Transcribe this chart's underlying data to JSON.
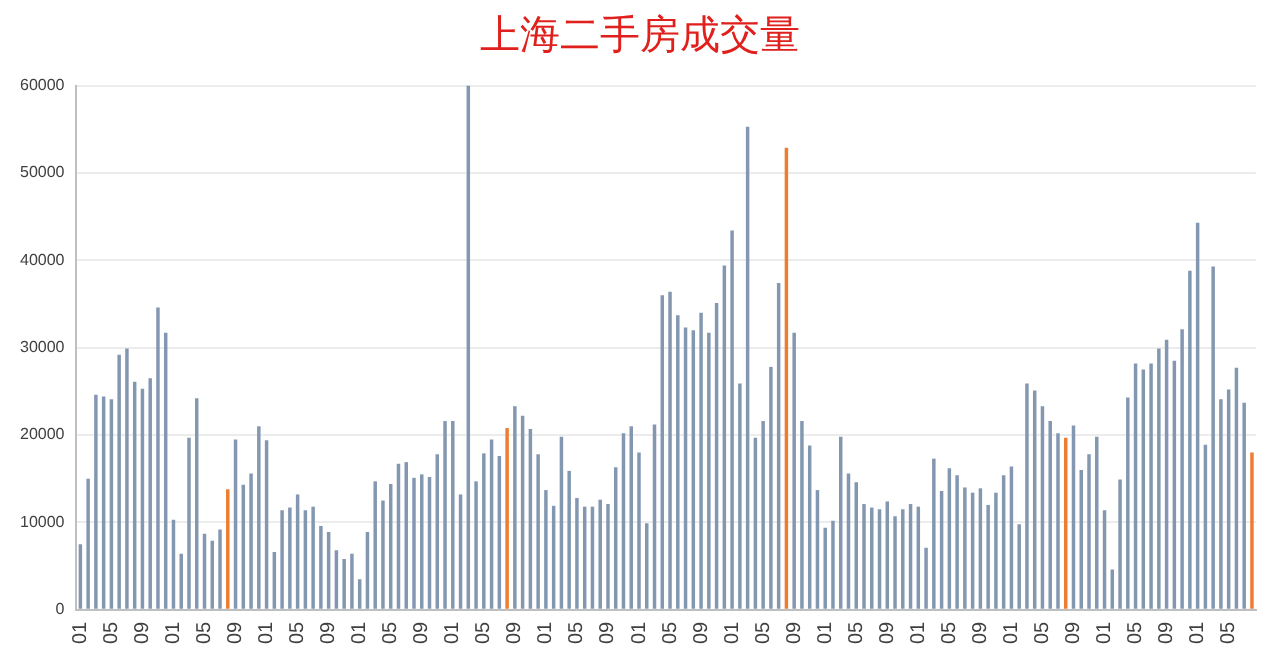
{
  "chart_data": {
    "type": "bar",
    "title": "上海二手房成交量",
    "categories": [
      "01",
      null,
      null,
      null,
      "05",
      null,
      null,
      null,
      "09",
      null,
      null,
      null,
      "01",
      null,
      null,
      null,
      "05",
      null,
      null,
      null,
      "09",
      null,
      null,
      null,
      "01",
      null,
      null,
      null,
      "05",
      null,
      null,
      null,
      "09",
      null,
      null,
      null,
      "01",
      null,
      null,
      null,
      "05",
      null,
      null,
      null,
      "09",
      null,
      null,
      null,
      "01",
      null,
      null,
      null,
      "05",
      null,
      null,
      null,
      "09",
      null,
      null,
      null,
      "01",
      null,
      null,
      null,
      "05",
      null,
      null,
      null,
      "09",
      null,
      null,
      null,
      "01",
      null,
      null,
      null,
      "05",
      null,
      null,
      null,
      "09",
      null,
      null,
      null,
      "01",
      null,
      null,
      null,
      "05",
      null,
      null,
      null,
      "09",
      null,
      null,
      null,
      "01",
      null,
      null,
      null,
      "05",
      null,
      null,
      null,
      "09",
      null,
      null,
      null,
      "01",
      null,
      null,
      null,
      "05",
      null,
      null,
      null,
      "09",
      null,
      null,
      null,
      "01",
      null,
      null,
      null,
      "05",
      null,
      null,
      null,
      "09",
      null,
      null,
      null,
      "01",
      null,
      null,
      null,
      "05",
      null,
      null,
      null,
      "09",
      null,
      null,
      null,
      "01",
      null,
      null,
      null,
      "05",
      null,
      null,
      null
    ],
    "values": [
      7500,
      15000,
      24600,
      24400,
      24100,
      29200,
      29900,
      26100,
      25300,
      26500,
      34600,
      31700,
      10300,
      6400,
      19700,
      24200,
      8700,
      7900,
      9200,
      13800,
      19500,
      14300,
      15600,
      21000,
      19400,
      6600,
      11400,
      11700,
      13200,
      11400,
      11800,
      9600,
      8900,
      6800,
      5800,
      6400,
      3500,
      8900,
      14700,
      12500,
      14400,
      16700,
      16900,
      15100,
      15500,
      15200,
      17800,
      21600,
      21600,
      13200,
      60000,
      14700,
      17900,
      19500,
      17600,
      20800,
      23300,
      22200,
      20700,
      17800,
      13700,
      11900,
      19800,
      15900,
      12800,
      11800,
      11800,
      12600,
      12100,
      16300,
      20200,
      21000,
      18000,
      9900,
      21200,
      36000,
      36400,
      33700,
      32300,
      32000,
      34000,
      31700,
      35100,
      39400,
      43400,
      25900,
      55300,
      19700,
      21600,
      27800,
      37400,
      52900,
      31700,
      21600,
      18800,
      13700,
      9400,
      10200,
      19800,
      15600,
      14600,
      12100,
      11700,
      11500,
      12400,
      10700,
      11500,
      12100,
      11800,
      7100,
      17300,
      13600,
      16200,
      15400,
      14000,
      13400,
      13900,
      12000,
      13400,
      15400,
      16400,
      9800,
      25900,
      25100,
      23300,
      21600,
      20200,
      19700,
      21100,
      16000,
      17800,
      19800,
      11400,
      4600,
      14900,
      24300,
      28200,
      27500,
      28200,
      29900,
      30900,
      28500,
      32100,
      38800,
      44300,
      18900,
      39300,
      24100,
      25200,
      27700,
      23700,
      18000
    ],
    "colors": [
      "#8497b0",
      "#8497b0",
      "#8497b0",
      "#8497b0",
      "#8497b0",
      "#8497b0",
      "#8497b0",
      "#8497b0",
      "#8497b0",
      "#8497b0",
      "#8497b0",
      "#8497b0",
      "#8497b0",
      "#8497b0",
      "#8497b0",
      "#8497b0",
      "#8497b0",
      "#8497b0",
      "#8497b0",
      "#ed7d31",
      "#8497b0",
      "#8497b0",
      "#8497b0",
      "#8497b0",
      "#8497b0",
      "#8497b0",
      "#8497b0",
      "#8497b0",
      "#8497b0",
      "#8497b0",
      "#8497b0",
      "#8497b0",
      "#8497b0",
      "#8497b0",
      "#8497b0",
      "#8497b0",
      "#8497b0",
      "#8497b0",
      "#8497b0",
      "#8497b0",
      "#8497b0",
      "#8497b0",
      "#8497b0",
      "#8497b0",
      "#8497b0",
      "#8497b0",
      "#8497b0",
      "#8497b0",
      "#8497b0",
      "#8497b0",
      "#8497b0",
      "#8497b0",
      "#8497b0",
      "#8497b0",
      "#8497b0",
      "#ed7d31",
      "#8497b0",
      "#8497b0",
      "#8497b0",
      "#8497b0",
      "#8497b0",
      "#8497b0",
      "#8497b0",
      "#8497b0",
      "#8497b0",
      "#8497b0",
      "#8497b0",
      "#8497b0",
      "#8497b0",
      "#8497b0",
      "#8497b0",
      "#8497b0",
      "#8497b0",
      "#8497b0",
      "#8497b0",
      "#8497b0",
      "#8497b0",
      "#8497b0",
      "#8497b0",
      "#8497b0",
      "#8497b0",
      "#8497b0",
      "#8497b0",
      "#8497b0",
      "#8497b0",
      "#8497b0",
      "#8497b0",
      "#8497b0",
      "#8497b0",
      "#8497b0",
      "#8497b0",
      "#ed7d31",
      "#8497b0",
      "#8497b0",
      "#8497b0",
      "#8497b0",
      "#8497b0",
      "#8497b0",
      "#8497b0",
      "#8497b0",
      "#8497b0",
      "#8497b0",
      "#8497b0",
      "#8497b0",
      "#8497b0",
      "#8497b0",
      "#8497b0",
      "#8497b0",
      "#8497b0",
      "#8497b0",
      "#8497b0",
      "#8497b0",
      "#8497b0",
      "#8497b0",
      "#8497b0",
      "#8497b0",
      "#8497b0",
      "#8497b0",
      "#8497b0",
      "#8497b0",
      "#8497b0",
      "#8497b0",
      "#8497b0",
      "#8497b0",
      "#8497b0",
      "#8497b0",
      "#8497b0",
      "#ed7d31",
      "#8497b0",
      "#8497b0",
      "#8497b0",
      "#8497b0",
      "#8497b0",
      "#8497b0",
      "#8497b0",
      "#8497b0",
      "#8497b0",
      "#8497b0",
      "#8497b0",
      "#8497b0",
      "#8497b0",
      "#8497b0",
      "#8497b0",
      "#8497b0",
      "#8497b0",
      "#8497b0",
      "#8497b0",
      "#8497b0",
      "#8497b0",
      "#8497b0",
      "#8497b0",
      "#ed7d31"
    ],
    "ylim": [
      0,
      60000
    ],
    "yticks": [
      0,
      10000,
      20000,
      30000,
      40000,
      50000,
      60000
    ],
    "grid": "y"
  }
}
